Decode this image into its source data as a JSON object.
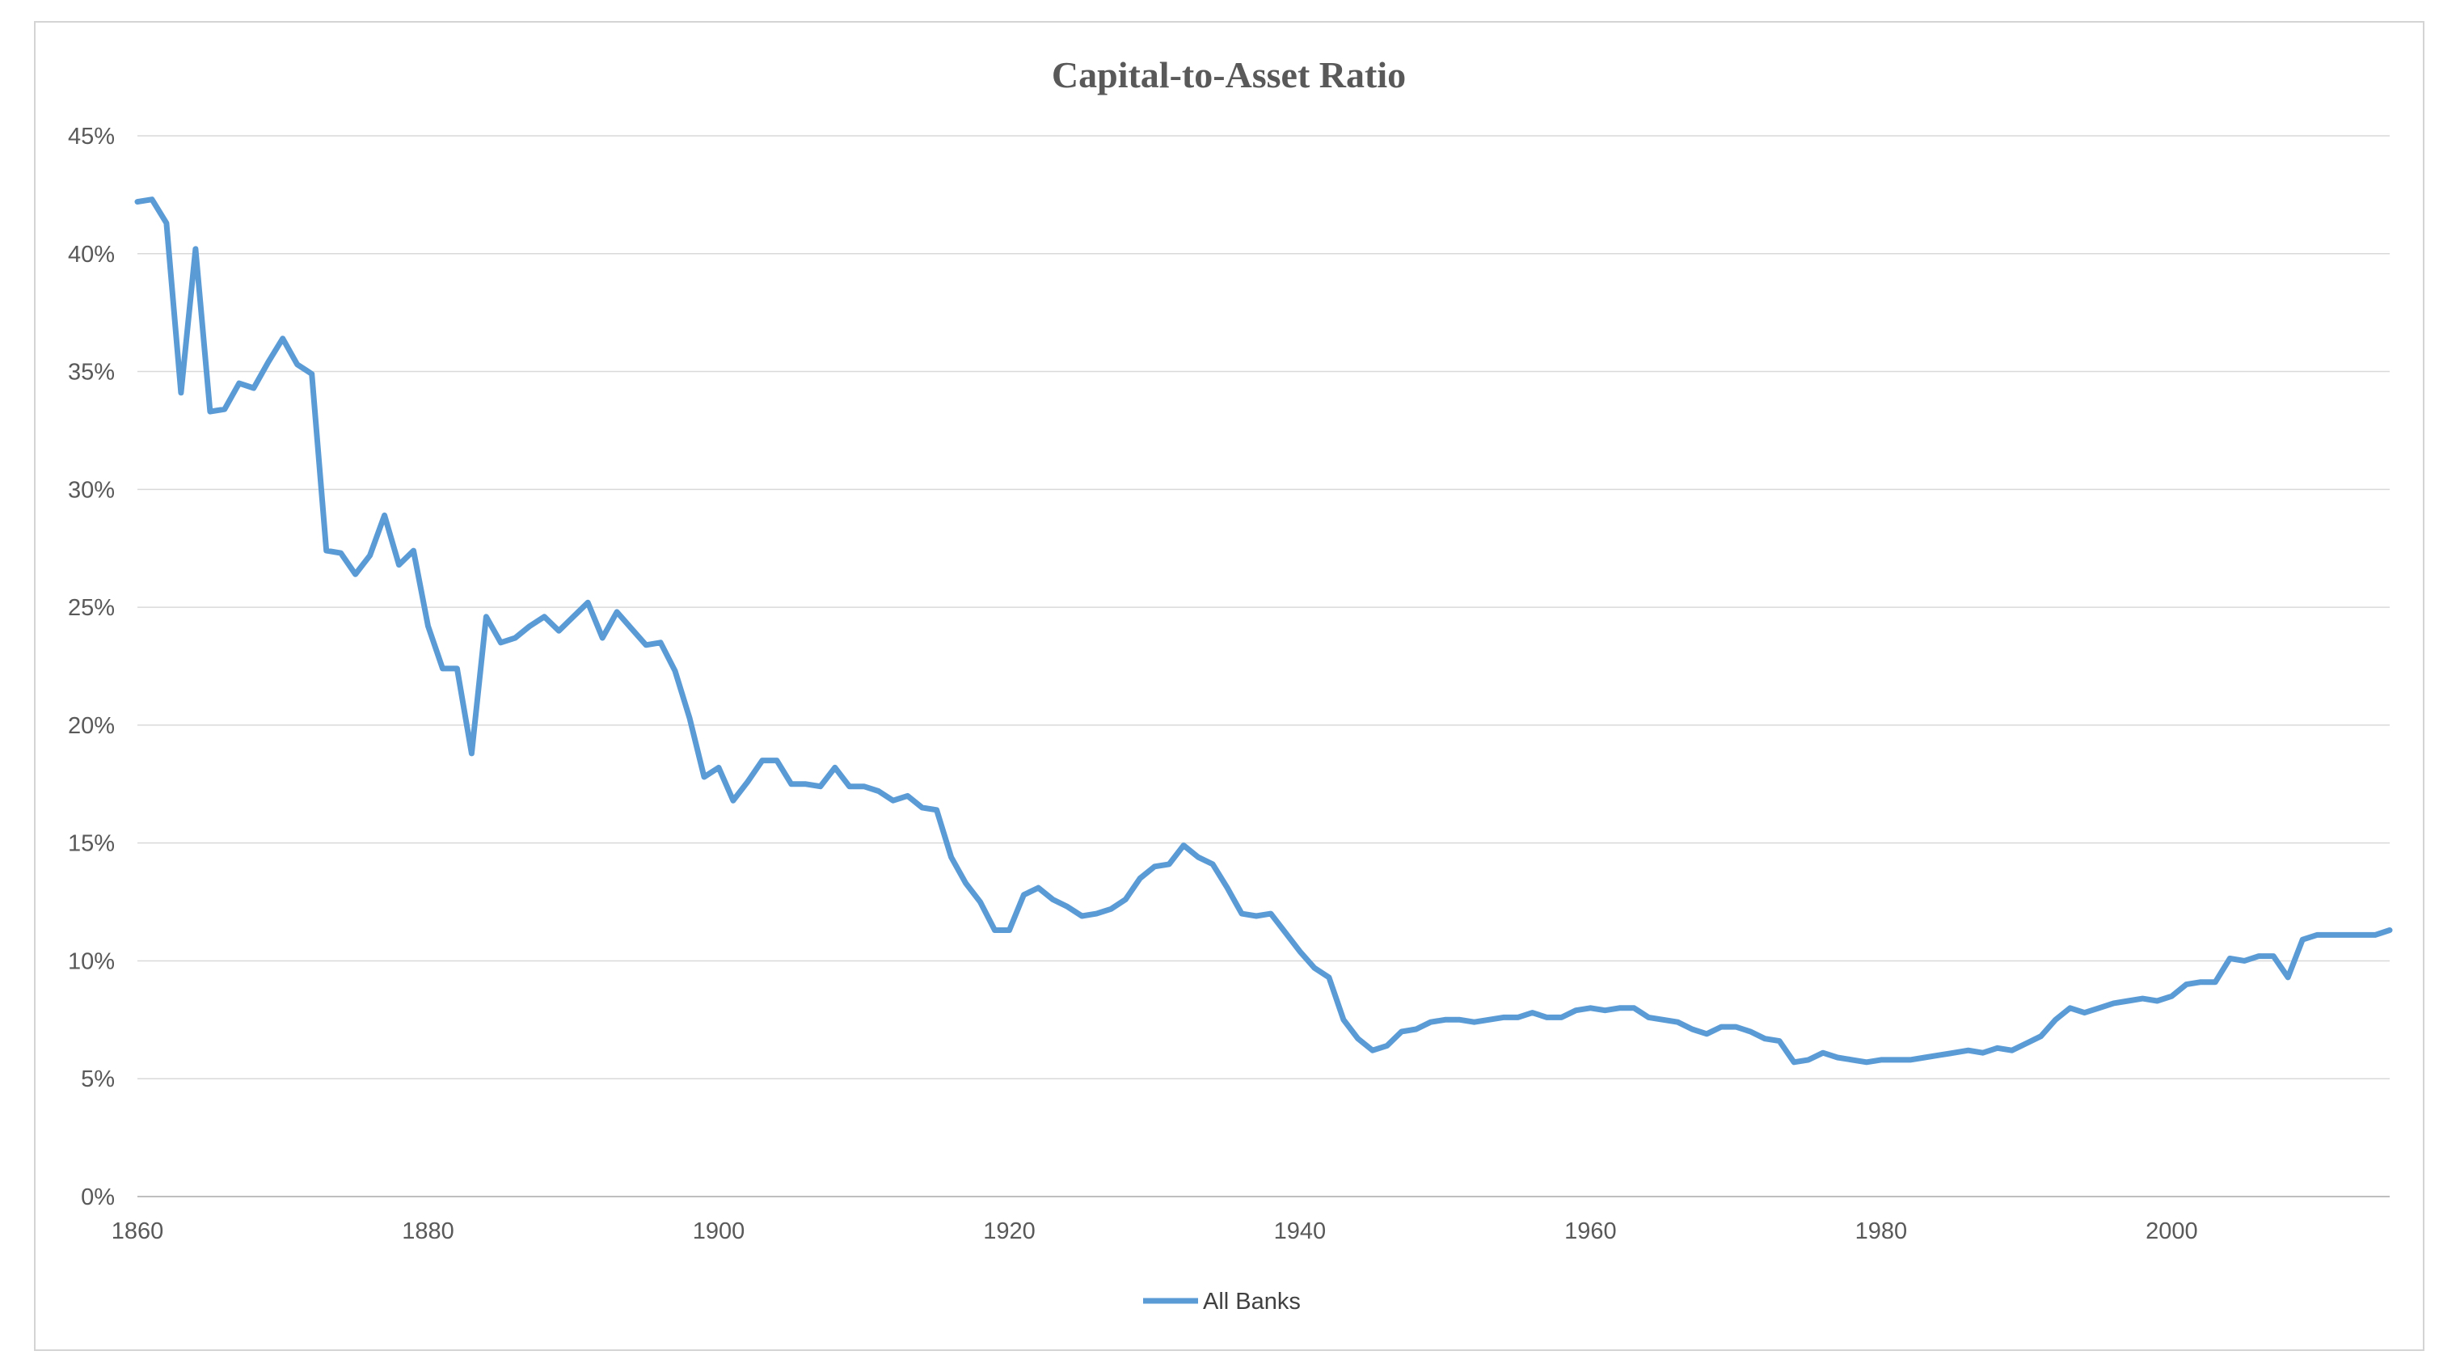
{
  "chart_data": {
    "type": "line",
    "title": "Capital-to-Asset Ratio",
    "xlabel": "",
    "ylabel": "",
    "xlim": [
      1860,
      2015
    ],
    "ylim": [
      0,
      45
    ],
    "x_ticks": [
      "1860",
      "1880",
      "1900",
      "1920",
      "1940",
      "1960",
      "1980",
      "2000"
    ],
    "x_tick_values": [
      1860,
      1880,
      1900,
      1920,
      1940,
      1960,
      1980,
      2000
    ],
    "y_ticks": [
      "0%",
      "5%",
      "10%",
      "15%",
      "20%",
      "25%",
      "30%",
      "35%",
      "40%",
      "45%"
    ],
    "y_tick_values": [
      0,
      5,
      10,
      15,
      20,
      25,
      30,
      35,
      40,
      45
    ],
    "grid": "horizontal",
    "legend_position": "bottom",
    "series": [
      {
        "name": "All Banks",
        "color": "#5b9bd5",
        "x": [
          1860,
          1861,
          1862,
          1863,
          1864,
          1865,
          1866,
          1867,
          1868,
          1869,
          1870,
          1871,
          1872,
          1873,
          1874,
          1875,
          1876,
          1877,
          1878,
          1879,
          1880,
          1881,
          1882,
          1883,
          1884,
          1885,
          1886,
          1887,
          1888,
          1889,
          1890,
          1891,
          1892,
          1893,
          1894,
          1895,
          1896,
          1897,
          1898,
          1899,
          1900,
          1901,
          1902,
          1903,
          1904,
          1905,
          1906,
          1907,
          1908,
          1909,
          1910,
          1911,
          1912,
          1913,
          1914,
          1915,
          1916,
          1917,
          1918,
          1919,
          1920,
          1921,
          1922,
          1923,
          1924,
          1925,
          1926,
          1927,
          1928,
          1929,
          1930,
          1931,
          1932,
          1933,
          1934,
          1935,
          1936,
          1937,
          1938,
          1939,
          1940,
          1941,
          1942,
          1943,
          1944,
          1945,
          1946,
          1947,
          1948,
          1949,
          1950,
          1951,
          1952,
          1953,
          1954,
          1955,
          1956,
          1957,
          1958,
          1959,
          1960,
          1961,
          1962,
          1963,
          1964,
          1965,
          1966,
          1967,
          1968,
          1969,
          1970,
          1971,
          1972,
          1973,
          1974,
          1975,
          1976,
          1977,
          1978,
          1979,
          1980,
          1981,
          1982,
          1983,
          1984,
          1985,
          1986,
          1987,
          1988,
          1989,
          1990,
          1991,
          1992,
          1993,
          1994,
          1995,
          1996,
          1997,
          1998,
          1999,
          2000,
          2001,
          2002,
          2003,
          2004,
          2005,
          2006,
          2007,
          2008,
          2009,
          2010,
          2011,
          2012,
          2013,
          2014,
          2015
        ],
        "values": [
          42.2,
          42.3,
          41.3,
          34.1,
          40.2,
          33.3,
          33.4,
          34.5,
          34.3,
          35.4,
          36.4,
          35.3,
          34.9,
          27.4,
          27.3,
          26.4,
          27.2,
          28.9,
          26.8,
          27.4,
          24.2,
          22.4,
          22.4,
          18.8,
          24.6,
          23.5,
          23.7,
          24.2,
          24.6,
          24.0,
          24.6,
          25.2,
          23.7,
          24.8,
          24.1,
          23.4,
          23.5,
          22.3,
          20.3,
          17.8,
          18.2,
          16.8,
          17.6,
          18.5,
          18.5,
          17.5,
          17.5,
          17.4,
          18.2,
          17.4,
          17.4,
          17.2,
          16.8,
          17.0,
          16.5,
          16.4,
          14.4,
          13.3,
          12.5,
          11.3,
          11.3,
          12.8,
          13.1,
          12.6,
          12.3,
          11.9,
          12.0,
          12.2,
          12.6,
          13.5,
          14.0,
          14.1,
          14.9,
          14.4,
          14.1,
          13.1,
          12.0,
          11.9,
          12.0,
          11.2,
          10.4,
          9.7,
          9.3,
          7.5,
          6.7,
          6.2,
          6.4,
          7.0,
          7.1,
          7.4,
          7.5,
          7.5,
          7.4,
          7.5,
          7.6,
          7.6,
          7.8,
          7.6,
          7.6,
          7.9,
          8.0,
          7.9,
          8.0,
          8.0,
          7.6,
          7.5,
          7.4,
          7.1,
          6.9,
          7.2,
          7.2,
          7.0,
          6.7,
          6.6,
          5.7,
          5.8,
          6.1,
          5.9,
          5.8,
          5.7,
          5.8,
          5.8,
          5.8,
          5.9,
          6.0,
          6.1,
          6.2,
          6.1,
          6.3,
          6.2,
          6.5,
          6.8,
          7.5,
          8.0,
          7.8,
          8.0,
          8.2,
          8.3,
          8.4,
          8.3,
          8.5,
          9.0,
          9.1,
          9.1,
          10.1,
          10.0,
          10.2,
          10.2,
          9.3,
          10.9,
          11.1,
          11.1,
          11.1,
          11.1,
          11.1,
          11.3
        ]
      }
    ]
  }
}
